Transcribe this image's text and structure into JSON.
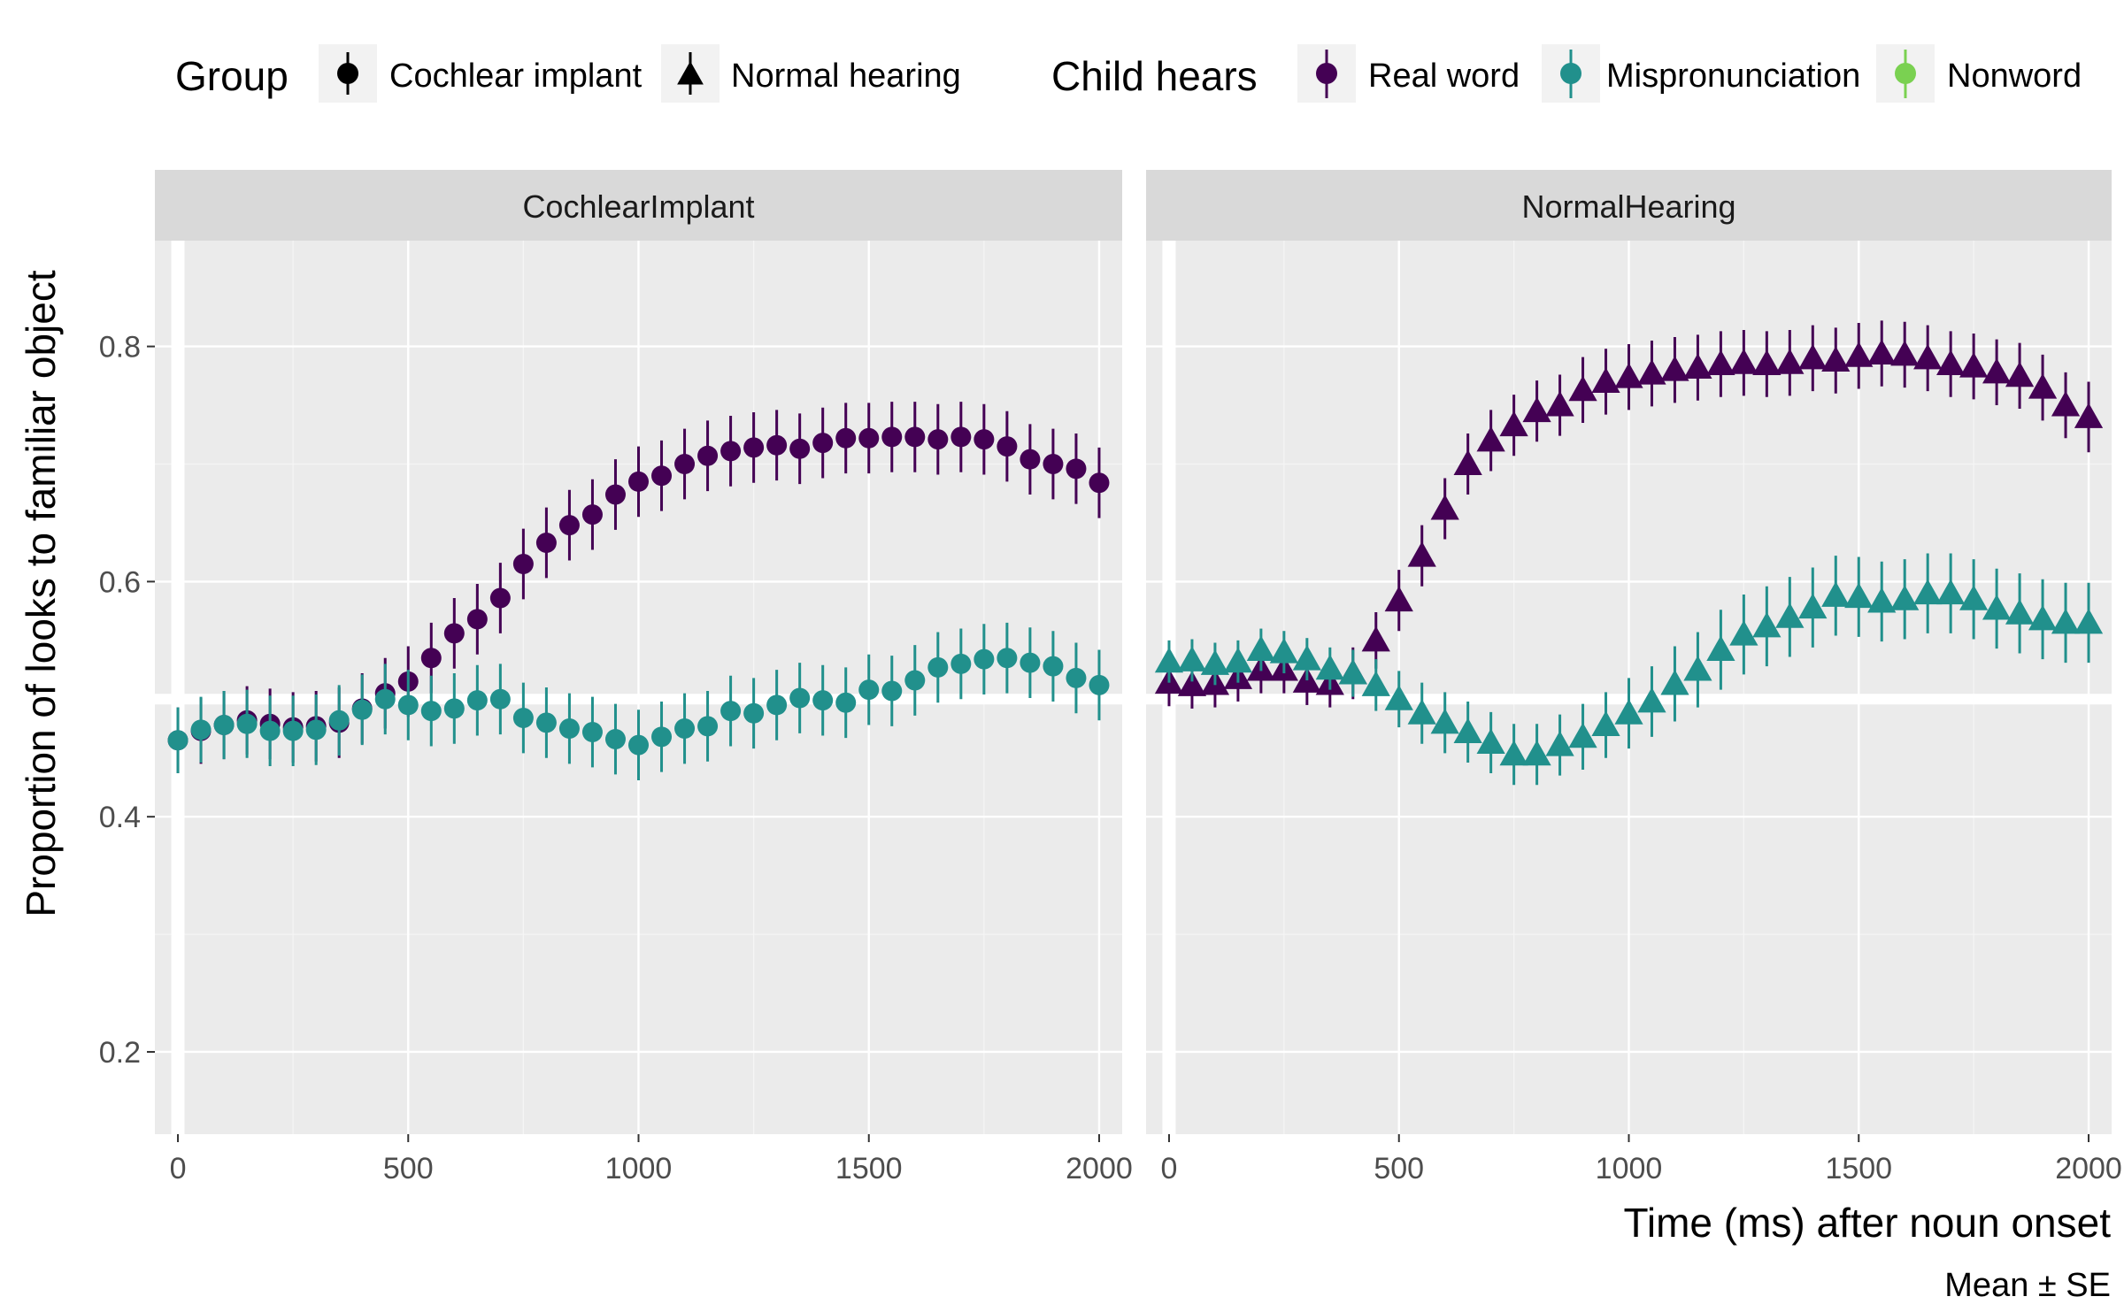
{
  "chart_data": {
    "type": "scatter",
    "xlabel": "Time (ms) after noun onset",
    "ylabel": "Proportion of looks to familiar object",
    "caption": "Mean ± SE",
    "xlim": [
      -50,
      2050
    ],
    "ylim": [
      0.13,
      0.89
    ],
    "x_ticks": [
      0,
      500,
      1000,
      1500,
      2000
    ],
    "y_ticks": [
      0.2,
      0.4,
      0.6,
      0.8
    ],
    "y_tick_labels": [
      "0.2",
      "0.4",
      "0.6",
      "0.8"
    ],
    "x_tick_labels": [
      "0",
      "500",
      "1000",
      "1500",
      "2000"
    ],
    "highlight_lines": {
      "x": 0,
      "y": 0.5
    },
    "grid": true,
    "legend": {
      "placement": "top",
      "group_title": "Group",
      "group_items": [
        {
          "label": "Cochlear implant",
          "shape": "circle"
        },
        {
          "label": "Normal hearing",
          "shape": "triangle"
        }
      ],
      "condition_title": "Child hears",
      "condition_items": [
        {
          "label": "Real word",
          "color": "#440154"
        },
        {
          "label": "Mispronunciation",
          "color": "#21908C"
        },
        {
          "label": "Nonword",
          "color": "#7AD151"
        }
      ]
    },
    "x": [
      0,
      50,
      100,
      150,
      200,
      250,
      300,
      350,
      400,
      450,
      500,
      550,
      600,
      650,
      700,
      750,
      800,
      850,
      900,
      950,
      1000,
      1050,
      1100,
      1150,
      1200,
      1250,
      1300,
      1350,
      1400,
      1450,
      1500,
      1550,
      1600,
      1650,
      1700,
      1750,
      1800,
      1850,
      1900,
      1950,
      2000
    ],
    "panels": [
      {
        "name": "CochlearImplant",
        "shape": "circle",
        "series": [
          {
            "name": "Real word",
            "color": "#440154",
            "values": [
              0.465,
              0.473,
              0.478,
              0.482,
              0.479,
              0.476,
              0.477,
              0.48,
              0.492,
              0.505,
              0.515,
              0.535,
              0.556,
              0.568,
              0.586,
              0.615,
              0.633,
              0.648,
              0.657,
              0.674,
              0.685,
              0.69,
              0.7,
              0.707,
              0.711,
              0.714,
              0.716,
              0.713,
              0.718,
              0.722,
              0.722,
              0.723,
              0.723,
              0.721,
              0.723,
              0.721,
              0.715,
              0.704,
              0.7,
              0.696,
              0.684
            ],
            "se": [
              0.028,
              0.028,
              0.029,
              0.029,
              0.03,
              0.03,
              0.03,
              0.03,
              0.03,
              0.03,
              0.03,
              0.03,
              0.03,
              0.03,
              0.03,
              0.03,
              0.03,
              0.03,
              0.03,
              0.03,
              0.03,
              0.03,
              0.03,
              0.03,
              0.03,
              0.03,
              0.03,
              0.03,
              0.03,
              0.03,
              0.03,
              0.03,
              0.03,
              0.03,
              0.03,
              0.03,
              0.03,
              0.03,
              0.03,
              0.03,
              0.03
            ]
          },
          {
            "name": "Mispronunciation",
            "color": "#21908C",
            "values": [
              0.465,
              0.474,
              0.478,
              0.479,
              0.473,
              0.473,
              0.474,
              0.482,
              0.491,
              0.5,
              0.495,
              0.49,
              0.492,
              0.499,
              0.5,
              0.484,
              0.48,
              0.475,
              0.472,
              0.466,
              0.461,
              0.468,
              0.475,
              0.477,
              0.49,
              0.488,
              0.495,
              0.501,
              0.499,
              0.497,
              0.508,
              0.507,
              0.516,
              0.527,
              0.53,
              0.534,
              0.535,
              0.531,
              0.528,
              0.518,
              0.512
            ],
            "se": [
              0.028,
              0.028,
              0.029,
              0.029,
              0.03,
              0.03,
              0.03,
              0.03,
              0.03,
              0.03,
              0.03,
              0.03,
              0.03,
              0.03,
              0.03,
              0.03,
              0.03,
              0.03,
              0.03,
              0.03,
              0.03,
              0.03,
              0.03,
              0.03,
              0.03,
              0.03,
              0.03,
              0.03,
              0.03,
              0.03,
              0.03,
              0.03,
              0.03,
              0.03,
              0.03,
              0.03,
              0.03,
              0.03,
              0.03,
              0.03,
              0.03
            ]
          }
        ]
      },
      {
        "name": "NormalHearing",
        "shape": "triangle",
        "series": [
          {
            "name": "Real word",
            "color": "#440154",
            "values": [
              0.514,
              0.512,
              0.513,
              0.518,
              0.525,
              0.525,
              0.515,
              0.513,
              0.522,
              0.55,
              0.584,
              0.622,
              0.662,
              0.7,
              0.72,
              0.733,
              0.745,
              0.75,
              0.763,
              0.77,
              0.774,
              0.777,
              0.78,
              0.782,
              0.785,
              0.786,
              0.785,
              0.786,
              0.79,
              0.788,
              0.792,
              0.794,
              0.793,
              0.79,
              0.785,
              0.783,
              0.778,
              0.775,
              0.765,
              0.75,
              0.74
            ],
            "se": [
              0.02,
              0.02,
              0.02,
              0.02,
              0.02,
              0.02,
              0.02,
              0.02,
              0.022,
              0.024,
              0.026,
              0.026,
              0.026,
              0.026,
              0.026,
              0.026,
              0.026,
              0.026,
              0.028,
              0.028,
              0.028,
              0.028,
              0.028,
              0.028,
              0.028,
              0.028,
              0.028,
              0.028,
              0.028,
              0.028,
              0.028,
              0.028,
              0.028,
              0.028,
              0.028,
              0.028,
              0.028,
              0.028,
              0.028,
              0.028,
              0.03
            ]
          },
          {
            "name": "Mispronunciation",
            "color": "#21908C",
            "values": [
              0.532,
              0.533,
              0.53,
              0.532,
              0.542,
              0.54,
              0.534,
              0.526,
              0.522,
              0.512,
              0.5,
              0.488,
              0.48,
              0.472,
              0.463,
              0.453,
              0.453,
              0.461,
              0.468,
              0.478,
              0.488,
              0.498,
              0.513,
              0.525,
              0.542,
              0.555,
              0.562,
              0.57,
              0.578,
              0.588,
              0.587,
              0.583,
              0.585,
              0.59,
              0.59,
              0.585,
              0.577,
              0.573,
              0.568,
              0.565,
              0.565
            ],
            "se": [
              0.018,
              0.018,
              0.018,
              0.018,
              0.018,
              0.018,
              0.018,
              0.018,
              0.02,
              0.022,
              0.024,
              0.026,
              0.026,
              0.026,
              0.026,
              0.026,
              0.026,
              0.026,
              0.028,
              0.028,
              0.03,
              0.03,
              0.032,
              0.032,
              0.034,
              0.034,
              0.034,
              0.034,
              0.034,
              0.034,
              0.034,
              0.034,
              0.034,
              0.034,
              0.034,
              0.034,
              0.034,
              0.034,
              0.034,
              0.034,
              0.034
            ]
          }
        ]
      }
    ]
  }
}
